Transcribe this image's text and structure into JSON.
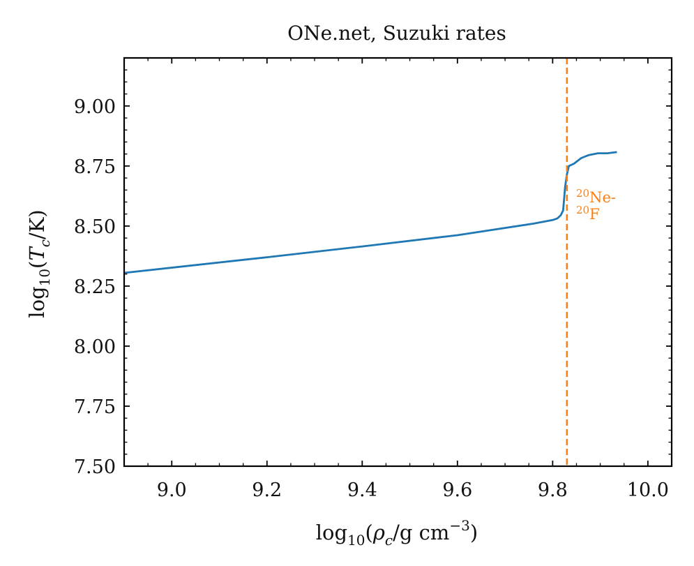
{
  "chart_data": {
    "type": "line",
    "title": "ONe.net, Suzuki rates",
    "xlabel": {
      "pre": "log",
      "sub": "10",
      "open": "(",
      "var": "ρ",
      "varsub": "c",
      "unit": "/g cm",
      "sup": "−3",
      "close": ")"
    },
    "ylabel": {
      "pre": "log",
      "sub": "10",
      "open": "(",
      "var": "T",
      "varsub": "c",
      "unit": "/K",
      "close": ")"
    },
    "xlim": [
      8.9,
      10.05
    ],
    "ylim": [
      7.5,
      9.2
    ],
    "x_ticks": [
      9.0,
      9.2,
      9.4,
      9.6,
      9.8,
      10.0
    ],
    "x_tick_labels": [
      "9.0",
      "9.2",
      "9.4",
      "9.6",
      "9.8",
      "10.0"
    ],
    "y_ticks": [
      7.5,
      7.75,
      8.0,
      8.25,
      8.5,
      8.75,
      9.0
    ],
    "y_tick_labels": [
      "7.50",
      "7.75",
      "8.00",
      "8.25",
      "8.50",
      "8.75",
      "9.00"
    ],
    "grid": false,
    "series": [
      {
        "color": "#1f77b4",
        "x": [
          8.9,
          9.2,
          9.4,
          9.6,
          9.76,
          9.8,
          9.81,
          9.817,
          9.822,
          9.826,
          9.83,
          9.834,
          9.845,
          9.86,
          9.875,
          9.895,
          9.915,
          9.935
        ],
        "y": [
          8.305,
          8.37,
          8.415,
          8.462,
          8.51,
          8.525,
          8.532,
          8.545,
          8.565,
          8.66,
          8.715,
          8.75,
          8.76,
          8.783,
          8.795,
          8.803,
          8.803,
          8.808
        ]
      }
    ],
    "vlines": [
      {
        "x": 9.83,
        "color": "#ff7f0e",
        "style": "dashed"
      }
    ],
    "annotations": [
      {
        "text_sup1": "20",
        "text1": "Ne-",
        "text_sup2": "20",
        "text2": "F",
        "x": 9.845,
        "y": 8.6,
        "color": "#ff7f0e"
      }
    ]
  }
}
